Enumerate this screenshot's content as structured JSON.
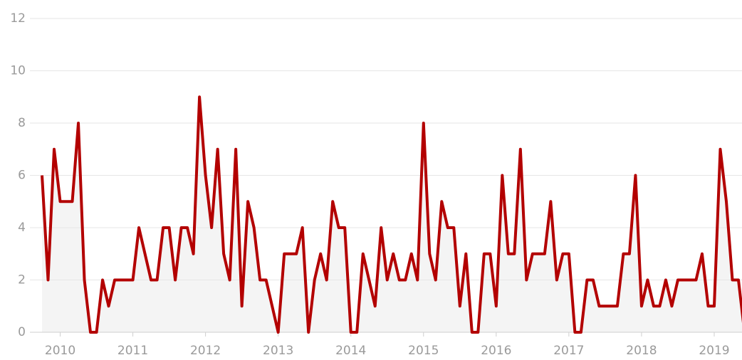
{
  "chart_data": {
    "type": "line",
    "color": "#b30000",
    "fill": "#f4f4f4",
    "grid": true,
    "x": [
      "2009-10",
      "2009-11",
      "2009-12",
      "2010-01",
      "2010-02",
      "2010-03",
      "2010-04",
      "2010-05",
      "2010-06",
      "2010-07",
      "2010-08",
      "2010-09",
      "2010-10",
      "2010-11",
      "2010-12",
      "2011-01",
      "2011-02",
      "2011-03",
      "2011-04",
      "2011-05",
      "2011-06",
      "2011-07",
      "2011-08",
      "2011-09",
      "2011-10",
      "2011-11",
      "2011-12",
      "2012-01",
      "2012-02",
      "2012-03",
      "2012-04",
      "2012-05",
      "2012-06",
      "2012-07",
      "2012-08",
      "2012-09",
      "2012-10",
      "2012-11",
      "2012-12",
      "2013-01",
      "2013-02",
      "2013-03",
      "2013-04",
      "2013-05",
      "2013-06",
      "2013-07",
      "2013-08",
      "2013-09",
      "2013-10",
      "2013-11",
      "2013-12",
      "2014-01",
      "2014-02",
      "2014-03",
      "2014-04",
      "2014-05",
      "2014-06",
      "2014-07",
      "2014-08",
      "2014-09",
      "2014-10",
      "2014-11",
      "2014-12",
      "2015-01",
      "2015-02",
      "2015-03",
      "2015-04",
      "2015-05",
      "2015-06",
      "2015-07",
      "2015-08",
      "2015-09",
      "2015-10",
      "2015-11",
      "2015-12",
      "2016-01",
      "2016-02",
      "2016-03",
      "2016-04",
      "2016-05",
      "2016-06",
      "2016-07",
      "2016-08",
      "2016-09",
      "2016-10",
      "2016-11",
      "2016-12",
      "2017-01",
      "2017-02",
      "2017-03",
      "2017-04",
      "2017-05",
      "2017-06",
      "2017-07",
      "2017-08",
      "2017-09",
      "2017-10",
      "2017-11",
      "2017-12",
      "2018-01",
      "2018-02",
      "2018-03",
      "2018-04",
      "2018-05",
      "2018-06",
      "2018-07",
      "2018-08",
      "2018-09",
      "2018-10",
      "2018-11",
      "2018-12",
      "2019-01",
      "2019-02",
      "2019-03",
      "2019-04",
      "2019-05",
      "2019-06"
    ],
    "values": [
      6,
      2,
      7,
      5,
      5,
      5,
      8,
      2,
      0,
      0,
      2,
      1,
      2,
      2,
      2,
      2,
      4,
      3,
      2,
      2,
      4,
      4,
      2,
      4,
      4,
      3,
      9,
      6,
      4,
      7,
      3,
      2,
      7,
      1,
      5,
      4,
      2,
      2,
      1,
      0,
      3,
      3,
      3,
      4,
      0,
      2,
      3,
      2,
      5,
      4,
      4,
      0,
      0,
      3,
      2,
      1,
      4,
      2,
      3,
      2,
      2,
      3,
      2,
      8,
      3,
      2,
      5,
      4,
      4,
      1,
      3,
      0,
      0,
      3,
      3,
      1,
      6,
      3,
      3,
      7,
      2,
      3,
      3,
      3,
      5,
      2,
      3,
      3,
      0,
      0,
      2,
      2,
      1,
      1,
      1,
      1,
      3,
      3,
      6,
      1,
      2,
      1,
      1,
      2,
      1,
      2,
      2,
      2,
      2,
      3,
      1,
      1,
      7,
      5,
      2,
      2,
      0
    ],
    "xlim": [
      "2009-10",
      "2019-05"
    ],
    "xticks": [
      2010,
      2011,
      2012,
      2013,
      2014,
      2015,
      2016,
      2017,
      2018,
      2019
    ],
    "ylim": [
      0,
      12
    ],
    "yticks": [
      0,
      2,
      4,
      6,
      8,
      10,
      12
    ]
  }
}
